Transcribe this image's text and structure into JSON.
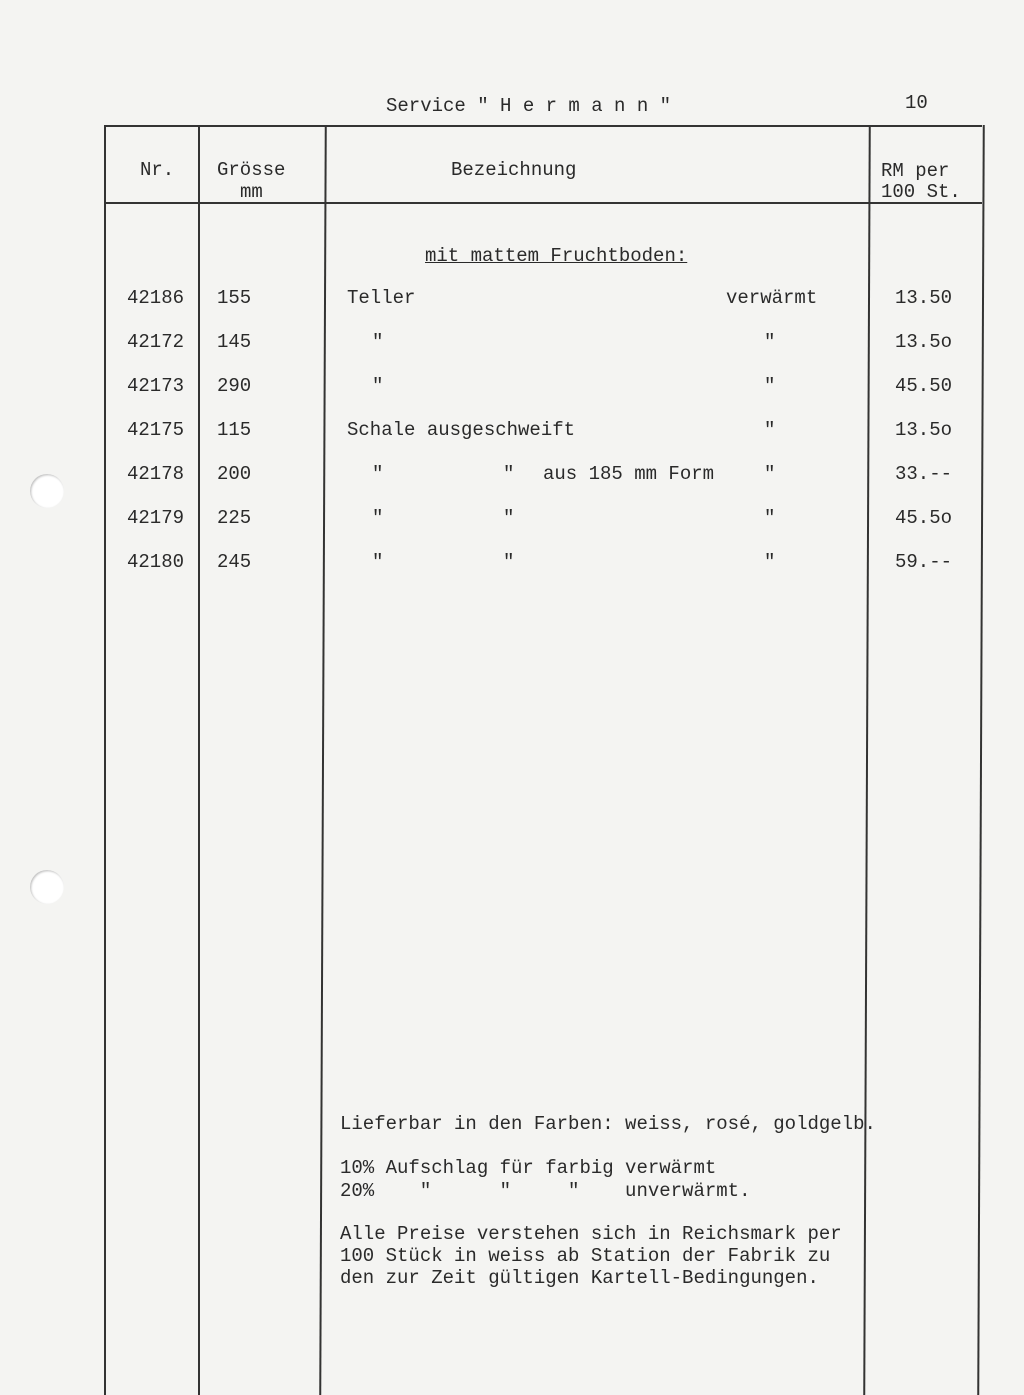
{
  "header": {
    "title": "Service \" H e r m a n n \"",
    "page_number": "10"
  },
  "columns": {
    "nr": "Nr.",
    "groesse": "Grösse",
    "groesse_unit": "mm",
    "bezeichnung": "Bezeichnung",
    "price_line1": "RM per",
    "price_line2": "100 St."
  },
  "section_heading": "mit mattem Fruchtboden:",
  "rows": [
    {
      "nr": "42186",
      "size": "155",
      "desc": "Teller",
      "desc2": "",
      "desc3": "",
      "note": "verwärmt",
      "price": "13.50"
    },
    {
      "nr": "42172",
      "size": "145",
      "desc": "\"",
      "desc2": "",
      "desc3": "",
      "note": "\"",
      "price": "13.5o"
    },
    {
      "nr": "42173",
      "size": "290",
      "desc": "\"",
      "desc2": "",
      "desc3": "",
      "note": "\"",
      "price": "45.50"
    },
    {
      "nr": "42175",
      "size": "115",
      "desc": "Schale ausgeschweift",
      "desc2": "",
      "desc3": "",
      "note": "\"",
      "price": "13.5o"
    },
    {
      "nr": "42178",
      "size": "200",
      "desc": "\"",
      "desc2": "\"",
      "desc3": "aus 185 mm Form",
      "note": "\"",
      "price": "33.--"
    },
    {
      "nr": "42179",
      "size": "225",
      "desc": "\"",
      "desc2": "\"",
      "desc3": "",
      "note": "\"",
      "price": "45.5o"
    },
    {
      "nr": "42180",
      "size": "245",
      "desc": "\"",
      "desc2": "\"",
      "desc3": "",
      "note": "\"",
      "price": "59.--"
    }
  ],
  "notes": {
    "colors": "Lieferbar in den Farben: weiss, rosé, goldgelb.",
    "surcharge1": "10% Aufschlag für farbig verwärmt",
    "surcharge2": "20%    \"      \"     \"    unverwärmt.",
    "prices_line1": "Alle Preise verstehen sich in Reichsmark per",
    "prices_line2": "100 Stück in weiss ab Station der Fabrik zu",
    "prices_line3": "den zur Zeit gültigen Kartell-Bedingungen."
  }
}
